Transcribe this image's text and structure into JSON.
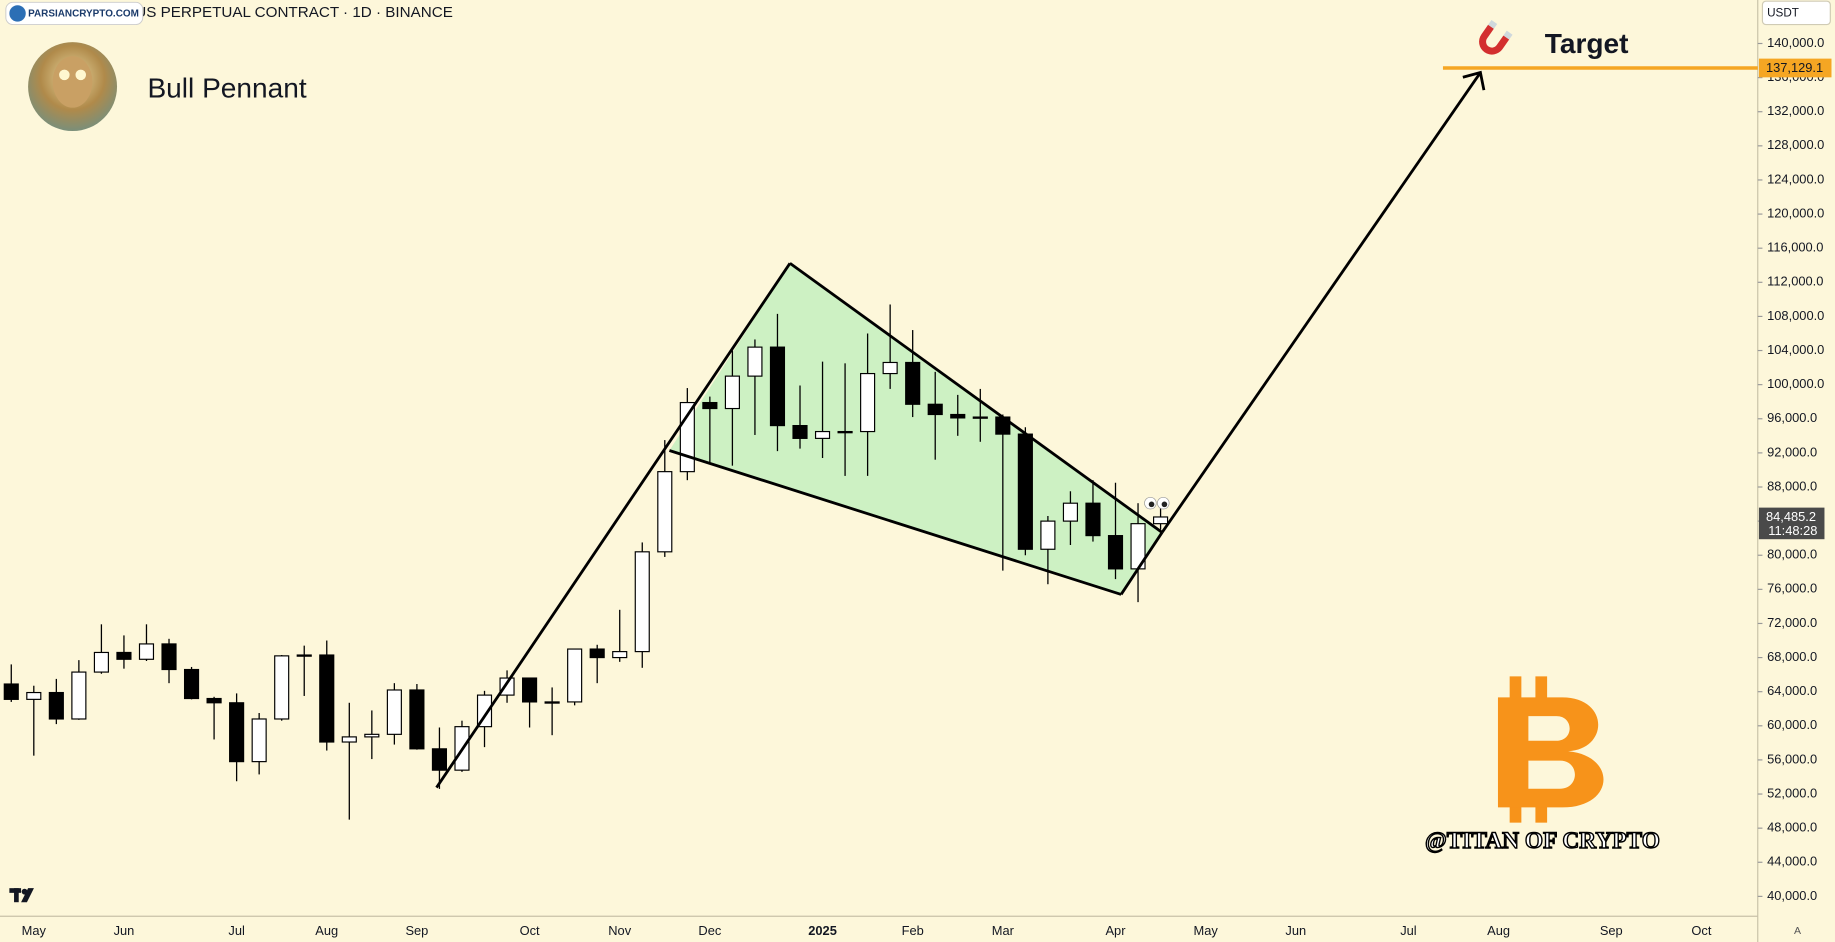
{
  "chart_data": {
    "type": "candlestick",
    "title": "Bitcoin / TetherUS PERPETUAL CONTRACT · 1D · BINANCE",
    "badge": "PARSIANCRYPTO.COM",
    "pattern_label": "Bull Pennant",
    "target_text": "Target",
    "watermark": "@TITAN OF CRYPTO",
    "currency": "USDT",
    "scale_mode": "A",
    "up_color": "#ffffff",
    "down_color": "#000000",
    "categories": [
      null,
      "May",
      null,
      null,
      null,
      "Jun",
      null,
      null,
      null,
      null,
      "Jul",
      null,
      null,
      null,
      "Aug",
      null,
      null,
      null,
      "Sep",
      null,
      null,
      null,
      null,
      "Oct",
      null,
      null,
      null,
      "Nov",
      null,
      null,
      null,
      "Dec",
      null,
      null,
      null,
      null,
      "2025",
      null,
      null,
      null,
      "Feb",
      null,
      null,
      null,
      "Mar",
      null,
      null,
      null,
      null,
      "Apr",
      null,
      null,
      null,
      "May",
      null,
      null,
      null,
      "Jun",
      null,
      null,
      null,
      null,
      "Jul",
      null,
      null,
      null,
      "Aug",
      null,
      null,
      null,
      null,
      "Sep",
      null,
      null,
      null,
      "Oct",
      null,
      null
    ],
    "open": [
      64900,
      63100,
      63900,
      60800,
      66300,
      68600,
      67800,
      69600,
      66600,
      63200,
      62700,
      55800,
      60800,
      68200,
      68300,
      58100,
      58700,
      59000,
      64200,
      57300,
      54800,
      59900,
      63600,
      65600,
      62800,
      62800,
      69000,
      68000,
      68700,
      80400,
      89800,
      97900,
      97200,
      101000,
      104400,
      95200,
      93700,
      94500,
      94500,
      101300,
      102600,
      97700,
      96500,
      96100,
      96200,
      94200,
      80700,
      84000,
      86100,
      82300,
      78400,
      83700,
      null,
      null,
      null,
      null,
      null,
      null,
      null,
      null,
      null,
      null,
      null,
      null,
      null,
      null,
      null,
      null,
      null,
      null,
      null,
      null,
      null,
      null,
      null,
      null,
      null,
      null
    ],
    "high": [
      67200,
      64700,
      65500,
      67700,
      71900,
      70600,
      71900,
      70200,
      66900,
      63400,
      63800,
      61500,
      68300,
      69400,
      70000,
      62700,
      61800,
      65000,
      64900,
      59800,
      60600,
      64100,
      66500,
      65600,
      64500,
      69000,
      69500,
      73600,
      81500,
      93500,
      99600,
      98600,
      104000,
      105300,
      108300,
      99900,
      102700,
      102500,
      106000,
      109400,
      106400,
      101500,
      98800,
      99500,
      96500,
      95000,
      84600,
      87500,
      88800,
      88500,
      86100,
      85800,
      null,
      null,
      null,
      null,
      null,
      null,
      null,
      null,
      null,
      null,
      null,
      null,
      null,
      null,
      null,
      null,
      null,
      null,
      null,
      null,
      null,
      null,
      null,
      null,
      null,
      null
    ],
    "low": [
      62800,
      56500,
      60200,
      60700,
      66100,
      66700,
      67600,
      65000,
      63100,
      58400,
      53500,
      54300,
      60600,
      63500,
      57100,
      49000,
      56100,
      57800,
      57200,
      52600,
      54600,
      57500,
      62700,
      59800,
      58900,
      62400,
      65000,
      67500,
      66800,
      79800,
      88800,
      90800,
      90500,
      94100,
      92200,
      92500,
      91400,
      89300,
      89300,
      99500,
      96200,
      91200,
      94000,
      93300,
      78200,
      80000,
      76600,
      81200,
      81600,
      77200,
      74500,
      83000,
      null,
      null,
      null,
      null,
      null,
      null,
      null,
      null,
      null,
      null,
      null,
      null,
      null,
      null,
      null,
      null,
      null,
      null,
      null,
      null,
      null,
      null,
      null,
      null,
      null,
      null
    ],
    "close": [
      63100,
      63900,
      60800,
      66300,
      68600,
      67800,
      69600,
      66600,
      63200,
      62700,
      55800,
      60800,
      68200,
      68300,
      58100,
      58700,
      59000,
      64200,
      57300,
      54800,
      59900,
      63600,
      65600,
      62800,
      62800,
      69000,
      68000,
      68700,
      80400,
      89800,
      97900,
      97200,
      101000,
      104400,
      95200,
      93700,
      94500,
      94500,
      101300,
      102600,
      97700,
      96500,
      96100,
      96200,
      94200,
      80700,
      84000,
      86100,
      82300,
      78400,
      83700,
      84485.2,
      null,
      null,
      null,
      null,
      null,
      null,
      null,
      null,
      null,
      null,
      null,
      null,
      null,
      null,
      null,
      null,
      null,
      null,
      null,
      null,
      null,
      null,
      null,
      null,
      null,
      null
    ],
    "ylim": [
      37670,
      145100
    ],
    "yticks": [
      {
        "value": 40000,
        "label": "40,000.0"
      },
      {
        "value": 44000,
        "label": "44,000.0"
      },
      {
        "value": 48000,
        "label": "48,000.0"
      },
      {
        "value": 52000,
        "label": "52,000.0"
      },
      {
        "value": 56000,
        "label": "56,000.0"
      },
      {
        "value": 60000,
        "label": "60,000.0"
      },
      {
        "value": 64000,
        "label": "64,000.0"
      },
      {
        "value": 68000,
        "label": "68,000.0"
      },
      {
        "value": 72000,
        "label": "72,000.0"
      },
      {
        "value": 76000,
        "label": "76,000.0"
      },
      {
        "value": 80000,
        "label": "80,000.0"
      },
      {
        "value": 84000,
        "label": "84,000.0"
      },
      {
        "value": 88000,
        "label": "88,000.0"
      },
      {
        "value": 92000,
        "label": "92,000.0"
      },
      {
        "value": 96000,
        "label": "96,000.0"
      },
      {
        "value": 100000,
        "label": "100,000.0"
      },
      {
        "value": 104000,
        "label": "104,000.0"
      },
      {
        "value": 108000,
        "label": "108,000.0"
      },
      {
        "value": 112000,
        "label": "112,000.0"
      },
      {
        "value": 116000,
        "label": "116,000.0"
      },
      {
        "value": 120000,
        "label": "120,000.0"
      },
      {
        "value": 124000,
        "label": "124,000.0"
      },
      {
        "value": 128000,
        "label": "128,000.0"
      },
      {
        "value": 132000,
        "label": "132,000.0"
      },
      {
        "value": 136000,
        "label": "136,000.0"
      },
      {
        "value": 140000,
        "label": "140,000.0"
      }
    ],
    "target": {
      "value": 137129.1,
      "label": "137,129.1",
      "color": "#f5a623"
    },
    "last_price": {
      "value": 84485.2,
      "label": "84,485.2",
      "countdown": "11:48:28"
    }
  }
}
